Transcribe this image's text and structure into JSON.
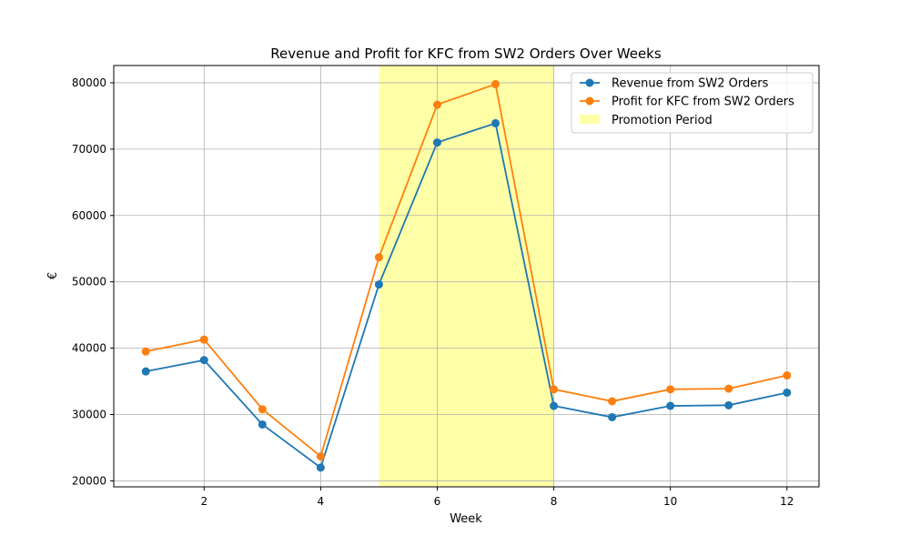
{
  "chart_data": {
    "type": "line",
    "title": "Revenue and Profit for KFC from SW2 Orders Over Weeks",
    "xlabel": "Week",
    "ylabel": "€",
    "x": [
      1,
      2,
      3,
      4,
      5,
      6,
      7,
      8,
      9,
      10,
      11,
      12
    ],
    "xlim": [
      0.45,
      12.55
    ],
    "ylim": [
      19100,
      82600
    ],
    "x_ticks": [
      2,
      4,
      6,
      8,
      10,
      12
    ],
    "y_ticks": [
      20000,
      30000,
      40000,
      50000,
      60000,
      70000,
      80000
    ],
    "grid": true,
    "legend_position": "top-right",
    "series": [
      {
        "name": "Revenue from SW2 Orders",
        "color": "#1f77b4",
        "values": [
          36500,
          38200,
          28500,
          22000,
          49600,
          71000,
          73900,
          31300,
          29600,
          31300,
          31400,
          33300
        ]
      },
      {
        "name": "Profit for KFC from SW2 Orders",
        "color": "#ff7f0e",
        "values": [
          39500,
          41300,
          30800,
          23700,
          53700,
          76700,
          79800,
          33800,
          32000,
          33800,
          33900,
          35900
        ]
      }
    ],
    "shaded_region": {
      "name": "Promotion Period",
      "x_start": 5,
      "x_end": 8,
      "color": "#ffff99"
    }
  }
}
